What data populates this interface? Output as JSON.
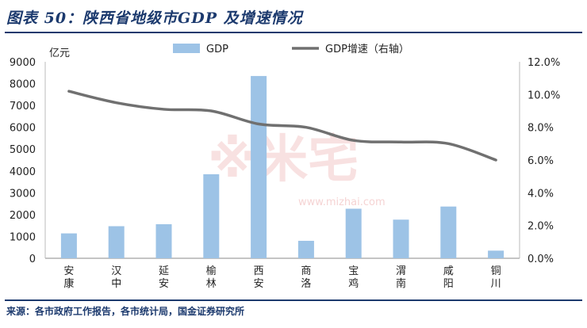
{
  "title": "图表 50：陕西省地级市GDP 及增速情况",
  "source": "来源：各市政府工作报告，各市统计局，国金证券研究所",
  "watermark": {
    "logo_text": "米宅",
    "url": "www.mizhai.com"
  },
  "chart_data": {
    "type": "bar",
    "categories": [
      "安康",
      "汉中",
      "延安",
      "榆林",
      "西安",
      "商洛",
      "宝鸡",
      "渭南",
      "咸阳",
      "铜川"
    ],
    "series": [
      {
        "name": "GDP",
        "type": "bar",
        "axis": "left",
        "color": "#9dc3e6",
        "values": [
          1140,
          1470,
          1560,
          3850,
          8350,
          800,
          2270,
          1770,
          2370,
          350
        ]
      },
      {
        "name": "GDP增速（右轴）",
        "type": "line",
        "axis": "right",
        "color": "#707070",
        "values": [
          10.2,
          9.5,
          9.1,
          9.0,
          8.2,
          8.0,
          7.2,
          7.1,
          7.0,
          6.0
        ]
      }
    ],
    "ylabel": "亿元",
    "ylim": [
      0,
      9000
    ],
    "y_ticks": [
      "0",
      "1000",
      "2000",
      "3000",
      "4000",
      "5000",
      "6000",
      "7000",
      "8000",
      "9000"
    ],
    "y2lim": [
      0,
      12
    ],
    "y2_ticks": [
      "0.0%",
      "2.0%",
      "4.0%",
      "6.0%",
      "8.0%",
      "10.0%",
      "12.0%"
    ],
    "legend_position": "top-center",
    "grid": false
  }
}
